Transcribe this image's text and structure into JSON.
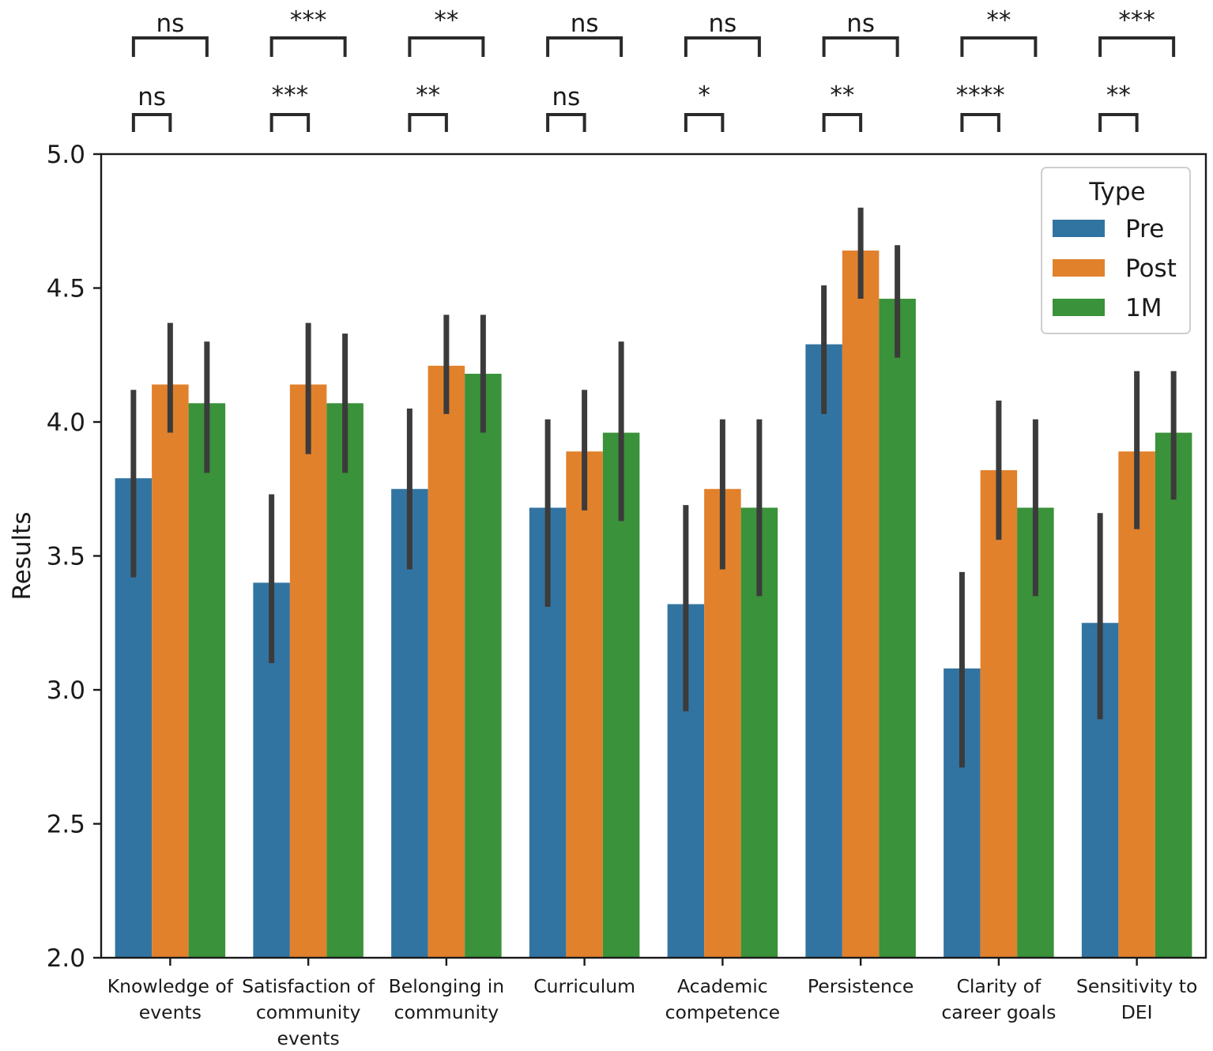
{
  "chart_data": {
    "type": "bar",
    "title": "",
    "xlabel": "",
    "ylabel": "Results",
    "ylim": [
      2.0,
      5.0
    ],
    "yticks": [
      "2.0",
      "2.5",
      "3.0",
      "3.5",
      "4.0",
      "4.5",
      "5.0"
    ],
    "grid": false,
    "legend": {
      "title": "Type",
      "position": "top-right"
    },
    "categories": [
      [
        "Knowledge of",
        "events"
      ],
      [
        "Satisfaction of",
        "community",
        "events"
      ],
      [
        "Belonging in",
        "community"
      ],
      [
        "Curriculum"
      ],
      [
        "Academic",
        "competence"
      ],
      [
        "Persistence"
      ],
      [
        "Clarity of",
        "career goals"
      ],
      [
        "Sensitivity to",
        "DEI"
      ]
    ],
    "series": [
      {
        "name": "Pre",
        "color": "#3274a1",
        "values": [
          3.79,
          3.4,
          3.75,
          3.68,
          3.32,
          4.29,
          3.08,
          3.25
        ],
        "ci_low": [
          3.42,
          3.1,
          3.45,
          3.31,
          2.92,
          4.03,
          2.71,
          2.89
        ],
        "ci_high": [
          4.12,
          3.73,
          4.05,
          4.01,
          3.69,
          4.51,
          3.44,
          3.66
        ]
      },
      {
        "name": "Post",
        "color": "#e1812c",
        "values": [
          4.14,
          4.14,
          4.21,
          3.89,
          3.75,
          4.64,
          3.82,
          3.89
        ],
        "ci_low": [
          3.96,
          3.88,
          4.03,
          3.67,
          3.45,
          4.46,
          3.56,
          3.6
        ],
        "ci_high": [
          4.37,
          4.37,
          4.4,
          4.12,
          4.01,
          4.8,
          4.08,
          4.19
        ]
      },
      {
        "name": "1M",
        "color": "#3a923a",
        "values": [
          4.07,
          4.07,
          4.18,
          3.96,
          3.68,
          4.46,
          3.68,
          3.96
        ],
        "ci_low": [
          3.81,
          3.81,
          3.96,
          3.63,
          3.35,
          4.24,
          3.35,
          3.71
        ],
        "ci_high": [
          4.3,
          4.33,
          4.4,
          4.3,
          4.01,
          4.66,
          4.01,
          4.19
        ]
      }
    ],
    "significance": {
      "pre_vs_post": [
        "ns",
        "***",
        "**",
        "ns",
        "*",
        "**",
        "****",
        "**"
      ],
      "pre_vs_1m": [
        "ns",
        "***",
        "**",
        "ns",
        "ns",
        "ns",
        "**",
        "***"
      ]
    }
  }
}
